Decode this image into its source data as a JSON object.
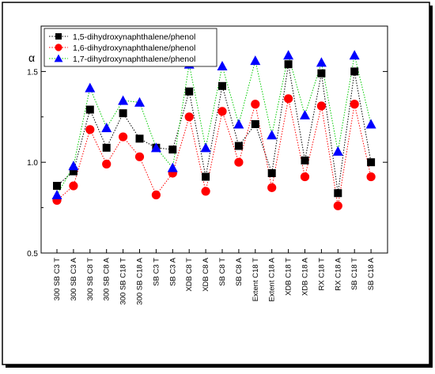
{
  "chart_data": {
    "type": "line",
    "ylabel": "α",
    "xlabel": "",
    "title": "",
    "ylim": [
      0.5,
      1.75
    ],
    "yticks": [
      0.5,
      1.0,
      1.5
    ],
    "ytick_labels": [
      "0.5",
      "1.0",
      "1.5"
    ],
    "grid": false,
    "legend_position": "top-left",
    "categories": [
      "300 SB C3 T",
      "300 SB C3 A",
      "300 SB C8 T",
      "300 SB C8 A",
      "300 SB C18 T",
      "300 SB C18 A",
      "SB C3 T",
      "SB C3 A",
      "XDB C8 T",
      "XDB C8 A",
      "SB C8 T",
      "SB C8 A",
      "Extent C18 T",
      "Extent C18 A",
      "XDB C18 T",
      "XDB C18 A",
      "RX C18 T",
      "RX C18 A",
      "SB C18 T",
      "SB C18 A"
    ],
    "series": [
      {
        "name": "1,5-dihydroxynaphthalene/phenol",
        "marker": "square",
        "marker_color": "#000000",
        "line_color": "#000000",
        "values": [
          0.87,
          0.95,
          1.29,
          1.08,
          1.27,
          1.13,
          1.08,
          1.07,
          1.39,
          0.92,
          1.42,
          1.09,
          1.21,
          0.94,
          1.54,
          1.01,
          1.49,
          0.83,
          1.5,
          1.0
        ]
      },
      {
        "name": "1,6-dihydroxynaphthalene/phenol",
        "marker": "circle",
        "marker_color": "#ff0000",
        "line_color": "#ff0000",
        "values": [
          0.79,
          0.87,
          1.18,
          0.99,
          1.14,
          1.03,
          0.82,
          0.94,
          1.25,
          0.84,
          1.28,
          1.0,
          1.32,
          0.86,
          1.35,
          0.92,
          1.31,
          0.76,
          1.32,
          0.92
        ]
      },
      {
        "name": "1,7-dihydroxynaphthalene/phenol",
        "marker": "triangle",
        "marker_color": "#0000ff",
        "line_color": "#00cc00",
        "values": [
          0.82,
          0.98,
          1.41,
          1.19,
          1.34,
          1.33,
          1.08,
          0.97,
          1.54,
          1.08,
          1.53,
          1.21,
          1.56,
          1.15,
          1.59,
          1.26,
          1.55,
          1.06,
          1.59,
          1.21
        ]
      }
    ]
  }
}
